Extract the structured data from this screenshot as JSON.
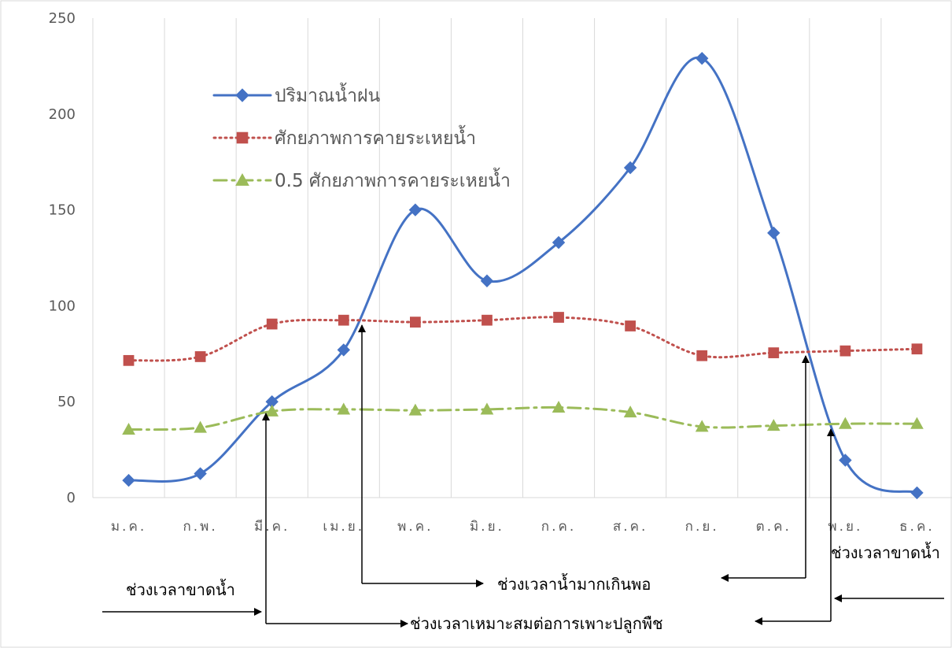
{
  "chart_data": {
    "type": "line",
    "categories": [
      "ม.ค.",
      "ก.พ.",
      "มี.ค.",
      "เม.ย.",
      "พ.ค.",
      "มิ.ย.",
      "ก.ค.",
      "ส.ค.",
      "ก.ย.",
      "ต.ค.",
      "พ.ย.",
      "ธ.ค."
    ],
    "ylim": [
      0,
      250
    ],
    "yticks": [
      "0",
      "50",
      "100",
      "150",
      "200",
      "250"
    ],
    "grid": "vertical",
    "legend_position": "top-left",
    "series": [
      {
        "name": "ปริมาณน้ำฝน",
        "values": [
          9,
          12.5,
          50,
          77,
          150,
          113,
          133,
          172,
          229,
          138,
          19.5,
          2.5
        ],
        "color": "#4472c4",
        "marker": "diamond",
        "line_style": "solid",
        "smooth": true
      },
      {
        "name": "ศักยภาพการคายระเหยน้ำ",
        "values": [
          71.5,
          73.5,
          90.5,
          92.5,
          91.5,
          92.5,
          94,
          89.5,
          74,
          75.5,
          76.5,
          77.5
        ],
        "color": "#c0504d",
        "marker": "square",
        "line_style": "dotted",
        "smooth": true
      },
      {
        "name": "0.5 ศักยภาพการคายระเหยน้ำ",
        "values": [
          35.5,
          36.5,
          45,
          46,
          45.5,
          46,
          47,
          44.5,
          37,
          37.5,
          38.5,
          38.5
        ],
        "color": "#9bbb59",
        "marker": "triangle",
        "line_style": "dashdot",
        "smooth": true
      }
    ],
    "annotations": {
      "dry_left": "ช่วงเวลาขาดน้ำ",
      "dry_right": "ช่วงเวลาขาดน้ำ",
      "excess": "ช่วงเวลาน้ำมากเกินพอ",
      "suitable": "ช่วงเวลาเหมาะสมต่อการเพาะปลูกพืช"
    }
  }
}
